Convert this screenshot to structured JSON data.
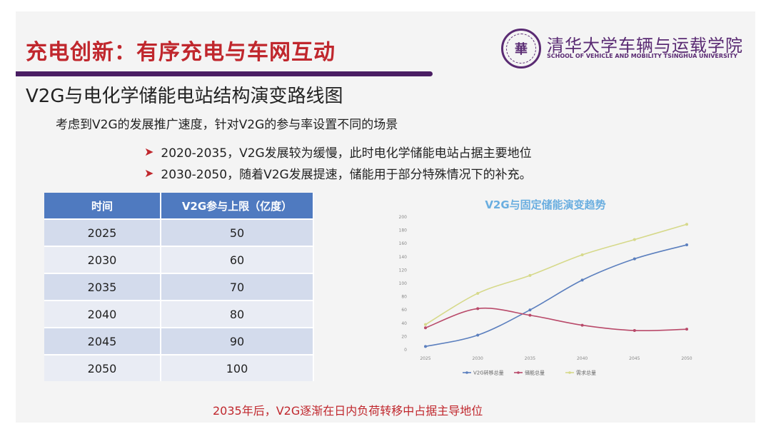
{
  "slide": {
    "main_title": "充电创新：有序充电与车网互动",
    "school_cn": "清华大学车辆与运载学院",
    "school_en": "SCHOOL OF VEHICLE AND MOBILITY TSINGHUA UNIVERSITY",
    "logo_char": "華",
    "subtitle": "V2G与电化学储能电站结构演变路线图",
    "intro": "考虑到V2G的发展推广速度，针对V2G的参与率设置不同的场景",
    "bullets": [
      "2020-2035，V2G发展较为缓慢，此时电化学储能电站占据主要地位",
      "2030-2050，随着V2G发展提速，储能用于部分特殊情况下的补充。"
    ],
    "footer": "2035年后，V2G逐渐在日内负荷转移中占据主导地位",
    "bullet_color": "#c0272d",
    "title_color": "#c0272d",
    "accent_purple": "#4a1e63"
  },
  "table": {
    "headers": [
      "时间",
      "V2G参与上限（亿度）"
    ],
    "rows": [
      [
        "2025",
        "50"
      ],
      [
        "2030",
        "60"
      ],
      [
        "2035",
        "70"
      ],
      [
        "2040",
        "80"
      ],
      [
        "2045",
        "90"
      ],
      [
        "2050",
        "100"
      ]
    ],
    "header_color": "#4f7ac0"
  },
  "chart_data": {
    "type": "line",
    "title": "V2G与固定储能演变趋势",
    "xlabel": "",
    "ylabel": "",
    "x": [
      "2025",
      "2030",
      "2035",
      "2040",
      "2045",
      "2050"
    ],
    "ylim": [
      0,
      200
    ],
    "yticks": [
      0,
      20,
      40,
      60,
      80,
      100,
      120,
      140,
      160,
      180,
      200
    ],
    "grid": false,
    "legend_position": "bottom",
    "series": [
      {
        "name": "V2G转移总量",
        "color": "#5b7fbe",
        "values": [
          5,
          22,
          60,
          105,
          137,
          158
        ]
      },
      {
        "name": "储能总量",
        "color": "#b94a6a",
        "values": [
          33,
          62,
          52,
          37,
          29,
          31
        ]
      },
      {
        "name": "需求总量",
        "color": "#d6d98a",
        "values": [
          38,
          85,
          112,
          143,
          166,
          189
        ]
      }
    ]
  }
}
